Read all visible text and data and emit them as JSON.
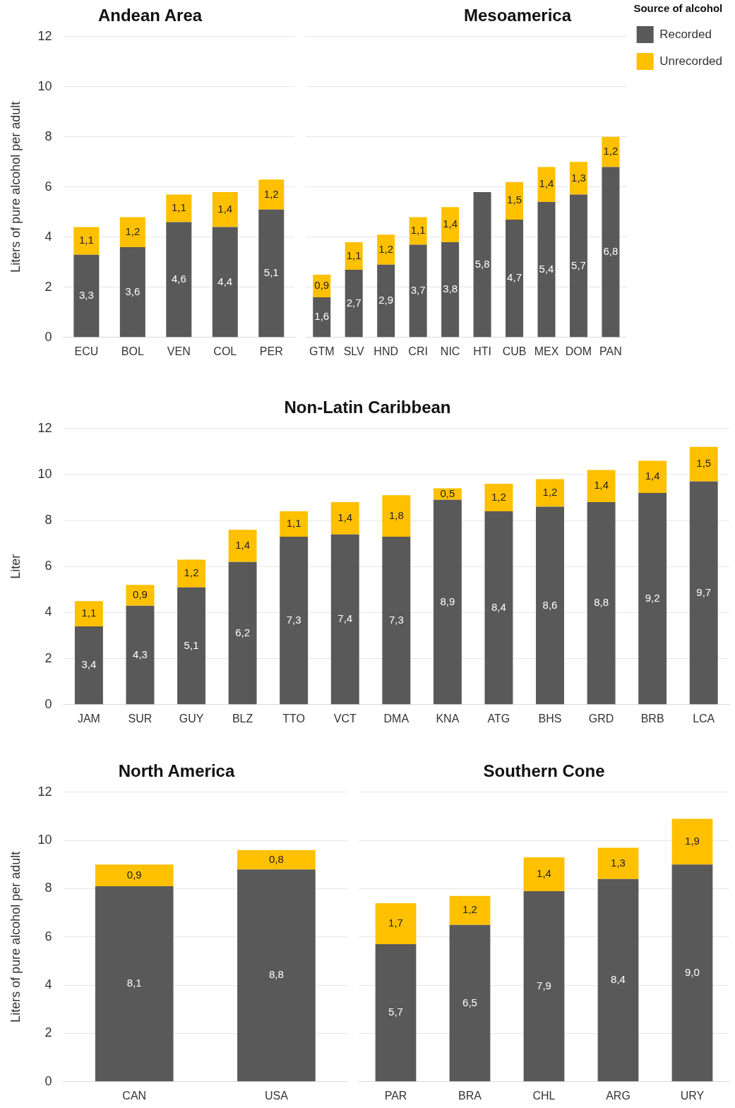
{
  "chart_data": [
    {
      "type": "bar",
      "title": "Andean Area",
      "ylabel": "Liters of pure alcohol per adult",
      "categories": [
        "ECU",
        "BOL",
        "VEN",
        "COL",
        "PER"
      ],
      "stacked": true,
      "ylim": [
        0,
        12
      ],
      "yticks": [
        0,
        2,
        4,
        6,
        8,
        10,
        12
      ],
      "grid": "y",
      "legend": false,
      "series": [
        {
          "color": "#595959",
          "values": [
            3.3,
            3.6,
            4.6,
            4.4,
            5.1
          ],
          "value_labels": [
            "3,3",
            "3,6",
            "4,6",
            "4,4",
            "5,1"
          ]
        },
        {
          "color": "#ffc000",
          "values": [
            1.1,
            1.2,
            1.1,
            1.4,
            1.2
          ],
          "value_labels": [
            "1,1",
            "1,2",
            "1,1",
            "1,4",
            "1,2"
          ]
        }
      ]
    },
    {
      "type": "bar",
      "title": "Mesoamerica",
      "legend_title": "Source of alcohol",
      "categories": [
        "GTM",
        "SLV",
        "HND",
        "CRI",
        "NIC",
        "HTI",
        "CUB",
        "MEX",
        "DOM",
        "PAN"
      ],
      "stacked": true,
      "ylim": [
        0,
        12
      ],
      "yticks": [
        0,
        2,
        4,
        6,
        8,
        10,
        12
      ],
      "grid": "y",
      "legend": "top right",
      "tick_labels": "x",
      "series": [
        {
          "name": "Recorded",
          "color": "#595959",
          "values": [
            1.6,
            2.7,
            2.9,
            3.7,
            3.8,
            5.8,
            4.7,
            5.4,
            5.7,
            6.8
          ],
          "value_labels": [
            "1,6",
            "2,7",
            "2,9",
            "3,7",
            "3,8",
            "5,8",
            "4,7",
            "5,4",
            "5,7",
            "6,8"
          ]
        },
        {
          "name": "Unrecorded",
          "color": "#ffc000",
          "values": [
            0.9,
            1.1,
            1.2,
            1.1,
            1.4,
            null,
            1.5,
            1.4,
            1.3,
            1.2
          ],
          "value_labels": [
            "0,9",
            "1,1",
            "1,2",
            "1,1",
            "1,4",
            null,
            "1,5",
            "1,4",
            "1,3",
            "1,2"
          ]
        }
      ]
    },
    {
      "type": "bar",
      "title": "Non-Latin Caribbean",
      "ylabel": "Liter",
      "categories": [
        "JAM",
        "SUR",
        "GUY",
        "BLZ",
        "TTO",
        "VCT",
        "DMA",
        "KNA",
        "ATG",
        "BHS",
        "GRD",
        "BRB",
        "LCA"
      ],
      "stacked": true,
      "ylim": [
        0,
        12
      ],
      "yticks": [
        0,
        2,
        4,
        6,
        8,
        10,
        12
      ],
      "grid": "y",
      "legend": false,
      "series": [
        {
          "color": "#595959",
          "values": [
            3.4,
            4.3,
            5.1,
            6.2,
            7.3,
            7.4,
            7.3,
            8.9,
            8.4,
            8.6,
            8.8,
            9.2,
            9.7
          ],
          "value_labels": [
            "3,4",
            "4,3",
            "5,1",
            "6,2",
            "7,3",
            "7,4",
            "7,3",
            "8,9",
            "8,4",
            "8,6",
            "8,8",
            "9,2",
            "9,7"
          ]
        },
        {
          "color": "#ffc000",
          "values": [
            1.1,
            0.9,
            1.2,
            1.4,
            1.1,
            1.4,
            1.8,
            0.5,
            1.2,
            1.2,
            1.4,
            1.4,
            1.5
          ],
          "value_labels": [
            "1,1",
            "0,9",
            "1,2",
            "1,4",
            "1,1",
            "1,4",
            "1,8",
            "0,5",
            "1,2",
            "1,2",
            "1,4",
            "1,4",
            "1,5"
          ]
        }
      ]
    },
    {
      "type": "bar",
      "title": "North America",
      "ylabel": "Liters of pure alcohol per adult",
      "categories": [
        "CAN",
        "USA"
      ],
      "stacked": true,
      "ylim": [
        0,
        12
      ],
      "yticks": [
        0,
        2,
        4,
        6,
        8,
        10,
        12
      ],
      "grid": "y",
      "legend": false,
      "series": [
        {
          "color": "#595959",
          "values": [
            8.1,
            8.8
          ],
          "value_labels": [
            "8,1",
            "8,8"
          ]
        },
        {
          "color": "#ffc000",
          "values": [
            0.9,
            0.8
          ],
          "value_labels": [
            "0,9",
            "0,8"
          ]
        }
      ]
    },
    {
      "type": "bar",
      "title": "Southern Cone",
      "categories": [
        "PAR",
        "BRA",
        "CHL",
        "ARG",
        "URY"
      ],
      "stacked": true,
      "ylim": [
        0,
        12
      ],
      "yticks": [
        0,
        2,
        4,
        6,
        8,
        10,
        12
      ],
      "grid": "y",
      "legend": false,
      "tick_labels": "x",
      "series": [
        {
          "color": "#595959",
          "values": [
            5.7,
            6.5,
            7.9,
            8.4,
            9.0
          ],
          "value_labels": [
            "5,7",
            "6,5",
            "7,9",
            "8,4",
            "9,0"
          ]
        },
        {
          "color": "#ffc000",
          "values": [
            1.7,
            1.2,
            1.4,
            1.3,
            1.9
          ],
          "value_labels": [
            "1,7",
            "1,2",
            "1,4",
            "1,3",
            "1,9"
          ]
        }
      ]
    }
  ]
}
